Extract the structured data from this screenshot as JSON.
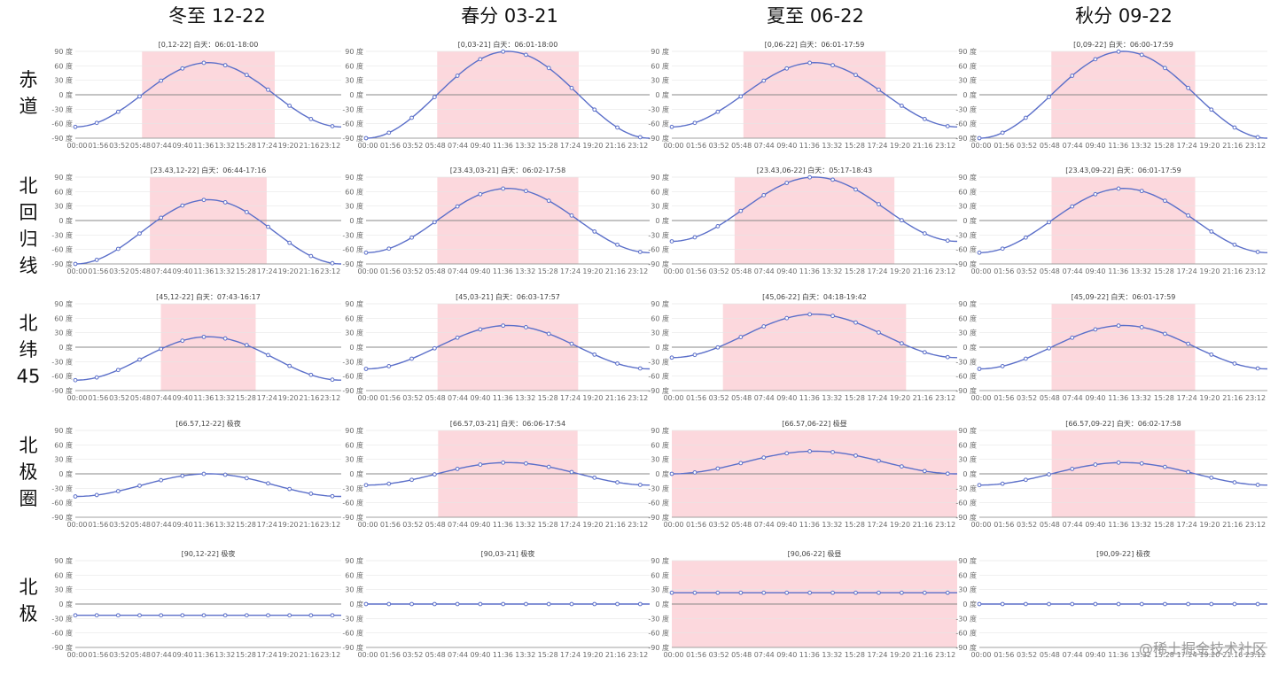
{
  "columns": [
    "冬至 12-22",
    "春分 03-21",
    "夏至 06-22",
    "秋分 09-22"
  ],
  "rows": [
    [
      "赤",
      "道"
    ],
    [
      "北",
      "回",
      "归",
      "线"
    ],
    [
      "北",
      "纬",
      "45"
    ],
    [
      "北",
      "极",
      "圈"
    ],
    [
      "北",
      "极"
    ]
  ],
  "watermark": "@稀土掘金技术社区",
  "colors": {
    "line": "#5b6fc9",
    "day": "#fcd8dd",
    "axis": "#888888",
    "grid": "#e6e6e6"
  },
  "chart_data": {
    "type": "line",
    "y_unit": "度",
    "ylim": [
      -90,
      90
    ],
    "y_ticks": [
      "90 度",
      "60 度",
      "30 度",
      "0 度",
      "-30 度",
      "-60 度",
      "-90 度"
    ],
    "x_ticks": [
      "00:00",
      "01:56",
      "03:52",
      "05:48",
      "07:44",
      "09:40",
      "11:36",
      "13:32",
      "15:28",
      "17:24",
      "19:20",
      "21:16",
      "23:12"
    ],
    "panels": [
      {
        "title": "[0,12-22] 白天：06:01-18:00",
        "max": 66.6,
        "min": -66.6,
        "day": [
          6.02,
          18.0
        ]
      },
      {
        "title": "[0,03-21] 白天：06:01-18:00",
        "max": 90,
        "min": -90,
        "day": [
          6.02,
          18.0
        ]
      },
      {
        "title": "[0,06-22] 白天：06:01-17:59",
        "max": 66.6,
        "min": -66.6,
        "day": [
          6.02,
          17.98
        ]
      },
      {
        "title": "[0,09-22] 白天：06:00-17:59",
        "max": 90,
        "min": -90,
        "day": [
          6.0,
          17.98
        ]
      },
      {
        "title": "[23.43,12-22] 白天：06:44-17:16",
        "max": 43.1,
        "min": -90,
        "day": [
          6.73,
          17.27
        ]
      },
      {
        "title": "[23.43,03-21] 白天：06:02-17:58",
        "max": 66.6,
        "min": -66.6,
        "day": [
          6.03,
          17.97
        ]
      },
      {
        "title": "[23.43,06-22] 白天：05:17-18:43",
        "max": 90,
        "min": -43.1,
        "day": [
          5.28,
          18.72
        ]
      },
      {
        "title": "[23.43,09-22] 白天：06:01-17:59",
        "max": 66.6,
        "min": -66.6,
        "day": [
          6.02,
          17.98
        ]
      },
      {
        "title": "[45,12-22] 白天：07:43-16:17",
        "max": 21.6,
        "min": -68.4,
        "day": [
          7.72,
          16.28
        ]
      },
      {
        "title": "[45,03-21] 白天：06:03-17:57",
        "max": 45,
        "min": -45,
        "day": [
          6.05,
          17.95
        ]
      },
      {
        "title": "[45,06-22] 白天：04:18-19:42",
        "max": 68.4,
        "min": -21.6,
        "day": [
          4.3,
          19.7
        ]
      },
      {
        "title": "[45,09-22] 白天：06:01-17:59",
        "max": 45,
        "min": -45,
        "day": [
          6.02,
          17.98
        ]
      },
      {
        "title": "[66.57,12-22] 极夜",
        "max": 0,
        "min": -46.9,
        "day": null
      },
      {
        "title": "[66.57,03-21] 白天：06:06-17:54",
        "max": 23.4,
        "min": -23.4,
        "day": [
          6.1,
          17.9
        ]
      },
      {
        "title": "[66.57,06-22] 极昼",
        "max": 46.9,
        "min": 0,
        "day": [
          0,
          24
        ]
      },
      {
        "title": "[66.57,09-22] 白天：06:02-17:58",
        "max": 23.4,
        "min": -23.4,
        "day": [
          6.03,
          17.97
        ]
      },
      {
        "title": "[90,12-22] 极夜",
        "max": -23.4,
        "min": -23.4,
        "day": null
      },
      {
        "title": "[90,03-21] 极夜",
        "max": 0,
        "min": 0,
        "day": null
      },
      {
        "title": "[90,06-22] 极昼",
        "max": 23.4,
        "min": 23.4,
        "day": [
          0,
          24
        ]
      },
      {
        "title": "[90,09-22] 极夜",
        "max": 0,
        "min": 0,
        "day": null
      }
    ]
  }
}
